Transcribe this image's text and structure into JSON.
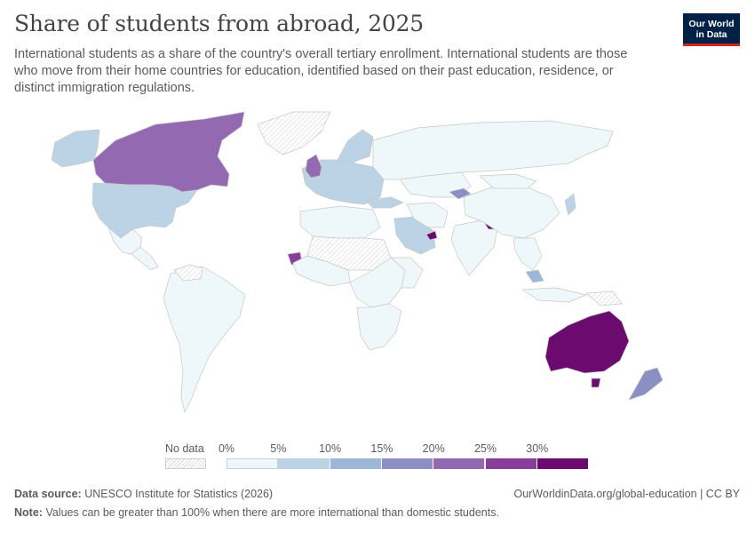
{
  "header": {
    "title": "Share of students from abroad, 2025",
    "subtitle": "International students as a share of the country's overall tertiary enrollment. International students are those who move from their home countries for education, identified based on their past education, residence, or distinct immigration regulations.",
    "logo_line1": "Our World",
    "logo_line2": "in Data"
  },
  "legend": {
    "no_data_label": "No data",
    "ticks": [
      "0%",
      "5%",
      "10%",
      "15%",
      "20%",
      "25%",
      "30%"
    ],
    "bin_colors": [
      "#eef8fb",
      "#bcd3e6",
      "#9cb7d8",
      "#8b8fc4",
      "#9369b2",
      "#8a3e9c",
      "#6b0a6f"
    ]
  },
  "footer": {
    "source_label": "Data source:",
    "source_text": "UNESCO Institute for Statistics (2026)",
    "note_label": "Note:",
    "note_text": "Values can be greater than 100% when there are more international than domestic students.",
    "url_text": "OurWorldinData.org/global-education | CC BY"
  },
  "colors": {
    "ocean": "#ffffff",
    "border": "#c7c7c7",
    "no_data_hatch": "#d8d8d8",
    "logo_bg": "#002147",
    "logo_accent": "#ce261e"
  },
  "regions": [
    {
      "name": "Canada",
      "bin": 4
    },
    {
      "name": "Alaska",
      "bin": 1
    },
    {
      "name": "United States",
      "bin": 1
    },
    {
      "name": "Mexico",
      "bin": 0
    },
    {
      "name": "Central America",
      "bin": 0
    },
    {
      "name": "Greenland",
      "bin": -1
    },
    {
      "name": "South America",
      "bin": 0
    },
    {
      "name": "Venezuela",
      "bin": -1
    },
    {
      "name": "Europe",
      "bin": 1
    },
    {
      "name": "United Kingdom",
      "bin": 4
    },
    {
      "name": "Scandinavia",
      "bin": 1
    },
    {
      "name": "Russia",
      "bin": 0
    },
    {
      "name": "Kazakhstan",
      "bin": 0
    },
    {
      "name": "Kyrgyzstan",
      "bin": 3
    },
    {
      "name": "Turkey",
      "bin": 1
    },
    {
      "name": "North Africa",
      "bin": 0
    },
    {
      "name": "Sahara",
      "bin": -1
    },
    {
      "name": "Senegal",
      "bin": 5
    },
    {
      "name": "West Africa",
      "bin": 0
    },
    {
      "name": "Central Africa",
      "bin": 0
    },
    {
      "name": "East Africa",
      "bin": 0
    },
    {
      "name": "Southern Africa",
      "bin": 0
    },
    {
      "name": "Saudi Arabia",
      "bin": 1
    },
    {
      "name": "United Arab Emirates",
      "bin": 6
    },
    {
      "name": "Iran",
      "bin": 0
    },
    {
      "name": "India",
      "bin": 0
    },
    {
      "name": "Nepal",
      "bin": 6
    },
    {
      "name": "China",
      "bin": 0
    },
    {
      "name": "Mongolia",
      "bin": 0
    },
    {
      "name": "Japan",
      "bin": 1
    },
    {
      "name": "Southeast Asia",
      "bin": 0
    },
    {
      "name": "Malaysia",
      "bin": 2
    },
    {
      "name": "Indonesia",
      "bin": 0
    },
    {
      "name": "Papua New Guinea",
      "bin": -1
    },
    {
      "name": "Australia",
      "bin": 6
    },
    {
      "name": "New Zealand",
      "bin": 3
    }
  ]
}
